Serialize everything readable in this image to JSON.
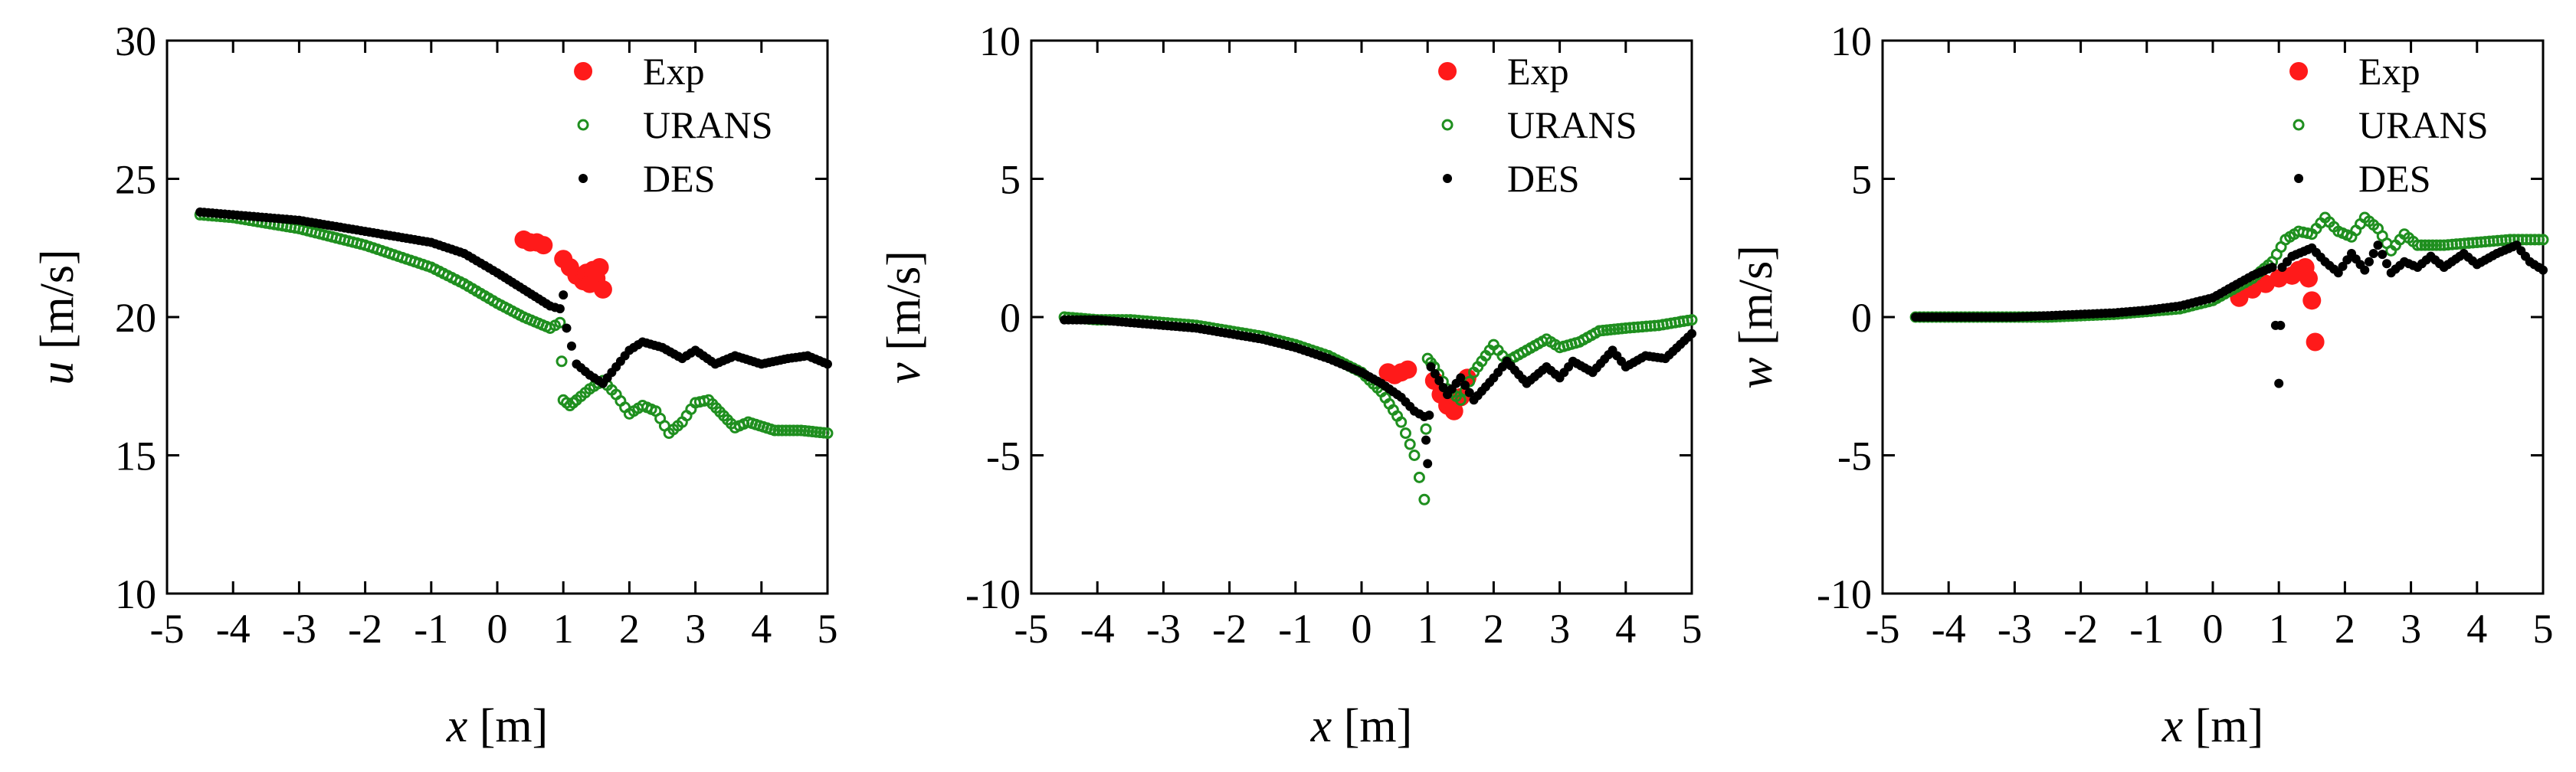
{
  "colors": {
    "exp": "#ff1a1a",
    "urans": "#1f8f1f",
    "des": "#000000",
    "axis": "#000000"
  },
  "chart_data": [
    {
      "type": "scatter",
      "xlabel_var": "x",
      "xlabel_unit": "[m]",
      "ylabel_var": "u",
      "ylabel_unit": "[m/s]",
      "xlim": [
        -5,
        5
      ],
      "ylim": [
        10,
        30
      ],
      "xticks": [
        -5,
        -4,
        -3,
        -2,
        -1,
        0,
        1,
        2,
        3,
        4,
        5
      ],
      "yticks": [
        10,
        15,
        20,
        25,
        30
      ],
      "legend": [
        "Exp",
        "URANS",
        "DES"
      ],
      "legend_position": "top-right",
      "series": [
        {
          "name": "Exp",
          "marker": "filled-large",
          "points": [
            [
              0.4,
              22.8
            ],
            [
              0.5,
              22.7
            ],
            [
              0.6,
              22.7
            ],
            [
              0.7,
              22.6
            ],
            [
              1.0,
              22.1
            ],
            [
              1.1,
              21.8
            ],
            [
              1.2,
              21.5
            ],
            [
              1.3,
              21.3
            ],
            [
              1.35,
              21.6
            ],
            [
              1.4,
              21.2
            ],
            [
              1.45,
              21.7
            ],
            [
              1.5,
              21.4
            ],
            [
              1.55,
              21.8
            ],
            [
              1.6,
              21.0
            ]
          ]
        },
        {
          "name": "URANS",
          "marker": "open",
          "points": [
            [
              -4.5,
              23.7
            ],
            [
              -4,
              23.6
            ],
            [
              -3.5,
              23.4
            ],
            [
              -3,
              23.2
            ],
            [
              -2.5,
              22.9
            ],
            [
              -2,
              22.6
            ],
            [
              -1.5,
              22.2
            ],
            [
              -1,
              21.8
            ],
            [
              -0.5,
              21.2
            ],
            [
              0,
              20.5
            ],
            [
              0.4,
              20.0
            ],
            [
              0.8,
              19.6
            ],
            [
              0.95,
              19.8
            ],
            [
              1.0,
              17.0
            ],
            [
              1.1,
              16.8
            ],
            [
              1.2,
              17.0
            ],
            [
              1.4,
              17.4
            ],
            [
              1.6,
              17.7
            ],
            [
              1.8,
              17.2
            ],
            [
              2.0,
              16.5
            ],
            [
              2.2,
              16.8
            ],
            [
              2.4,
              16.6
            ],
            [
              2.6,
              15.8
            ],
            [
              2.8,
              16.2
            ],
            [
              3.0,
              16.9
            ],
            [
              3.2,
              17.0
            ],
            [
              3.6,
              16.0
            ],
            [
              3.8,
              16.2
            ],
            [
              4.2,
              15.9
            ],
            [
              4.6,
              15.9
            ],
            [
              5.0,
              15.8
            ]
          ]
        },
        {
          "name": "DES",
          "marker": "filled-small",
          "points": [
            [
              -4.5,
              23.8
            ],
            [
              -4,
              23.7
            ],
            [
              -3.5,
              23.6
            ],
            [
              -3,
              23.5
            ],
            [
              -2.5,
              23.3
            ],
            [
              -2,
              23.1
            ],
            [
              -1.5,
              22.9
            ],
            [
              -1,
              22.7
            ],
            [
              -0.5,
              22.3
            ],
            [
              0,
              21.6
            ],
            [
              0.4,
              21.0
            ],
            [
              0.8,
              20.4
            ],
            [
              0.95,
              20.3
            ],
            [
              1.0,
              20.8
            ],
            [
              1.05,
              19.6
            ],
            [
              1.2,
              18.3
            ],
            [
              1.4,
              17.9
            ],
            [
              1.6,
              17.6
            ],
            [
              1.8,
              18.2
            ],
            [
              2.0,
              18.8
            ],
            [
              2.2,
              19.1
            ],
            [
              2.5,
              18.9
            ],
            [
              2.8,
              18.5
            ],
            [
              3.0,
              18.8
            ],
            [
              3.3,
              18.3
            ],
            [
              3.6,
              18.6
            ],
            [
              4.0,
              18.3
            ],
            [
              4.4,
              18.5
            ],
            [
              4.7,
              18.6
            ],
            [
              5.0,
              18.3
            ]
          ]
        }
      ]
    },
    {
      "type": "scatter",
      "xlabel_var": "x",
      "xlabel_unit": "[m]",
      "ylabel_var": "v",
      "ylabel_unit": "[m/s]",
      "xlim": [
        -5,
        5
      ],
      "ylim": [
        -10,
        10
      ],
      "xticks": [
        -5,
        -4,
        -3,
        -2,
        -1,
        0,
        1,
        2,
        3,
        4,
        5
      ],
      "yticks": [
        -10,
        -5,
        0,
        5,
        10
      ],
      "legend": [
        "Exp",
        "URANS",
        "DES"
      ],
      "legend_position": "top-right",
      "series": [
        {
          "name": "Exp",
          "marker": "filled-large",
          "points": [
            [
              0.4,
              -2.0
            ],
            [
              0.5,
              -2.1
            ],
            [
              0.6,
              -2.0
            ],
            [
              0.7,
              -1.9
            ],
            [
              1.1,
              -2.3
            ],
            [
              1.2,
              -2.8
            ],
            [
              1.3,
              -3.2
            ],
            [
              1.4,
              -3.4
            ],
            [
              1.5,
              -2.9
            ],
            [
              1.6,
              -2.2
            ]
          ]
        },
        {
          "name": "URANS",
          "marker": "open",
          "points": [
            [
              -4.5,
              0.0
            ],
            [
              -4,
              -0.1
            ],
            [
              -3.5,
              -0.1
            ],
            [
              -3,
              -0.2
            ],
            [
              -2.5,
              -0.3
            ],
            [
              -2,
              -0.5
            ],
            [
              -1.5,
              -0.7
            ],
            [
              -1,
              -1.0
            ],
            [
              -0.5,
              -1.4
            ],
            [
              0,
              -2.0
            ],
            [
              0.3,
              -2.7
            ],
            [
              0.6,
              -3.8
            ],
            [
              0.8,
              -5.0
            ],
            [
              0.95,
              -6.6
            ],
            [
              1.0,
              -1.5
            ],
            [
              1.1,
              -1.8
            ],
            [
              1.3,
              -2.6
            ],
            [
              1.5,
              -3.0
            ],
            [
              1.7,
              -2.0
            ],
            [
              2.0,
              -1.0
            ],
            [
              2.2,
              -1.6
            ],
            [
              2.5,
              -1.2
            ],
            [
              2.8,
              -0.8
            ],
            [
              3.0,
              -1.1
            ],
            [
              3.3,
              -0.9
            ],
            [
              3.6,
              -0.5
            ],
            [
              4.0,
              -0.4
            ],
            [
              4.5,
              -0.3
            ],
            [
              5.0,
              -0.1
            ]
          ]
        },
        {
          "name": "DES",
          "marker": "filled-small",
          "points": [
            [
              -4.5,
              -0.1
            ],
            [
              -4,
              -0.1
            ],
            [
              -3.5,
              -0.2
            ],
            [
              -3,
              -0.3
            ],
            [
              -2.5,
              -0.4
            ],
            [
              -2,
              -0.6
            ],
            [
              -1.5,
              -0.8
            ],
            [
              -1,
              -1.1
            ],
            [
              -0.5,
              -1.5
            ],
            [
              0,
              -2.0
            ],
            [
              0.3,
              -2.4
            ],
            [
              0.6,
              -2.9
            ],
            [
              0.8,
              -3.4
            ],
            [
              0.95,
              -3.6
            ],
            [
              1.0,
              -5.3
            ],
            [
              1.05,
              -1.8
            ],
            [
              1.3,
              -2.8
            ],
            [
              1.5,
              -2.2
            ],
            [
              1.7,
              -3.0
            ],
            [
              2.0,
              -2.2
            ],
            [
              2.2,
              -1.6
            ],
            [
              2.5,
              -2.4
            ],
            [
              2.8,
              -1.8
            ],
            [
              3.0,
              -2.2
            ],
            [
              3.2,
              -1.6
            ],
            [
              3.5,
              -2.0
            ],
            [
              3.8,
              -1.2
            ],
            [
              4.0,
              -1.8
            ],
            [
              4.3,
              -1.4
            ],
            [
              4.6,
              -1.5
            ],
            [
              5.0,
              -0.6
            ]
          ]
        }
      ]
    },
    {
      "type": "scatter",
      "xlabel_var": "x",
      "xlabel_unit": "[m]",
      "ylabel_var": "w",
      "ylabel_unit": "[m/s]",
      "xlim": [
        -5,
        5
      ],
      "ylim": [
        -10,
        10
      ],
      "xticks": [
        -5,
        -4,
        -3,
        -2,
        -1,
        0,
        1,
        2,
        3,
        4,
        5
      ],
      "yticks": [
        -10,
        -5,
        0,
        5,
        10
      ],
      "legend": [
        "Exp",
        "URANS",
        "DES"
      ],
      "legend_position": "top-right",
      "series": [
        {
          "name": "Exp",
          "marker": "filled-large",
          "points": [
            [
              0.4,
              0.7
            ],
            [
              0.6,
              1.0
            ],
            [
              0.8,
              1.2
            ],
            [
              1.0,
              1.4
            ],
            [
              1.2,
              1.5
            ],
            [
              1.3,
              1.7
            ],
            [
              1.4,
              1.8
            ],
            [
              1.45,
              1.4
            ],
            [
              1.5,
              0.6
            ],
            [
              1.55,
              -0.9
            ]
          ]
        },
        {
          "name": "URANS",
          "marker": "open",
          "points": [
            [
              -4.5,
              0.0
            ],
            [
              -4,
              0.0
            ],
            [
              -3.5,
              0.0
            ],
            [
              -3,
              0.0
            ],
            [
              -2.5,
              0.0
            ],
            [
              -2,
              0.05
            ],
            [
              -1.5,
              0.1
            ],
            [
              -1,
              0.2
            ],
            [
              -0.5,
              0.3
            ],
            [
              0,
              0.6
            ],
            [
              0.3,
              1.0
            ],
            [
              0.6,
              1.4
            ],
            [
              0.9,
              2.0
            ],
            [
              1.1,
              2.8
            ],
            [
              1.3,
              3.1
            ],
            [
              1.5,
              3.0
            ],
            [
              1.7,
              3.6
            ],
            [
              1.9,
              3.1
            ],
            [
              2.1,
              2.9
            ],
            [
              2.3,
              3.6
            ],
            [
              2.5,
              3.2
            ],
            [
              2.7,
              2.4
            ],
            [
              2.9,
              3.0
            ],
            [
              3.1,
              2.6
            ],
            [
              3.5,
              2.6
            ],
            [
              4.0,
              2.7
            ],
            [
              4.5,
              2.8
            ],
            [
              5.0,
              2.8
            ]
          ]
        },
        {
          "name": "DES",
          "marker": "filled-small",
          "points": [
            [
              -4.5,
              0.0
            ],
            [
              -4,
              0.0
            ],
            [
              -3.5,
              0.0
            ],
            [
              -3,
              0.0
            ],
            [
              -2.5,
              0.05
            ],
            [
              -2,
              0.1
            ],
            [
              -1.5,
              0.15
            ],
            [
              -1,
              0.25
            ],
            [
              -0.5,
              0.4
            ],
            [
              0,
              0.7
            ],
            [
              0.3,
              1.1
            ],
            [
              0.6,
              1.5
            ],
            [
              0.9,
              1.8
            ],
            [
              1.0,
              -2.4
            ],
            [
              1.05,
              1.8
            ],
            [
              1.2,
              2.2
            ],
            [
              1.5,
              2.5
            ],
            [
              1.7,
              2.0
            ],
            [
              1.9,
              1.6
            ],
            [
              2.1,
              2.3
            ],
            [
              2.3,
              1.7
            ],
            [
              2.5,
              2.6
            ],
            [
              2.7,
              1.6
            ],
            [
              2.9,
              2.0
            ],
            [
              3.1,
              1.8
            ],
            [
              3.3,
              2.2
            ],
            [
              3.5,
              1.8
            ],
            [
              3.8,
              2.3
            ],
            [
              4.0,
              1.9
            ],
            [
              4.3,
              2.3
            ],
            [
              4.6,
              2.6
            ],
            [
              4.8,
              2.0
            ],
            [
              5.0,
              1.7
            ]
          ]
        }
      ]
    }
  ]
}
